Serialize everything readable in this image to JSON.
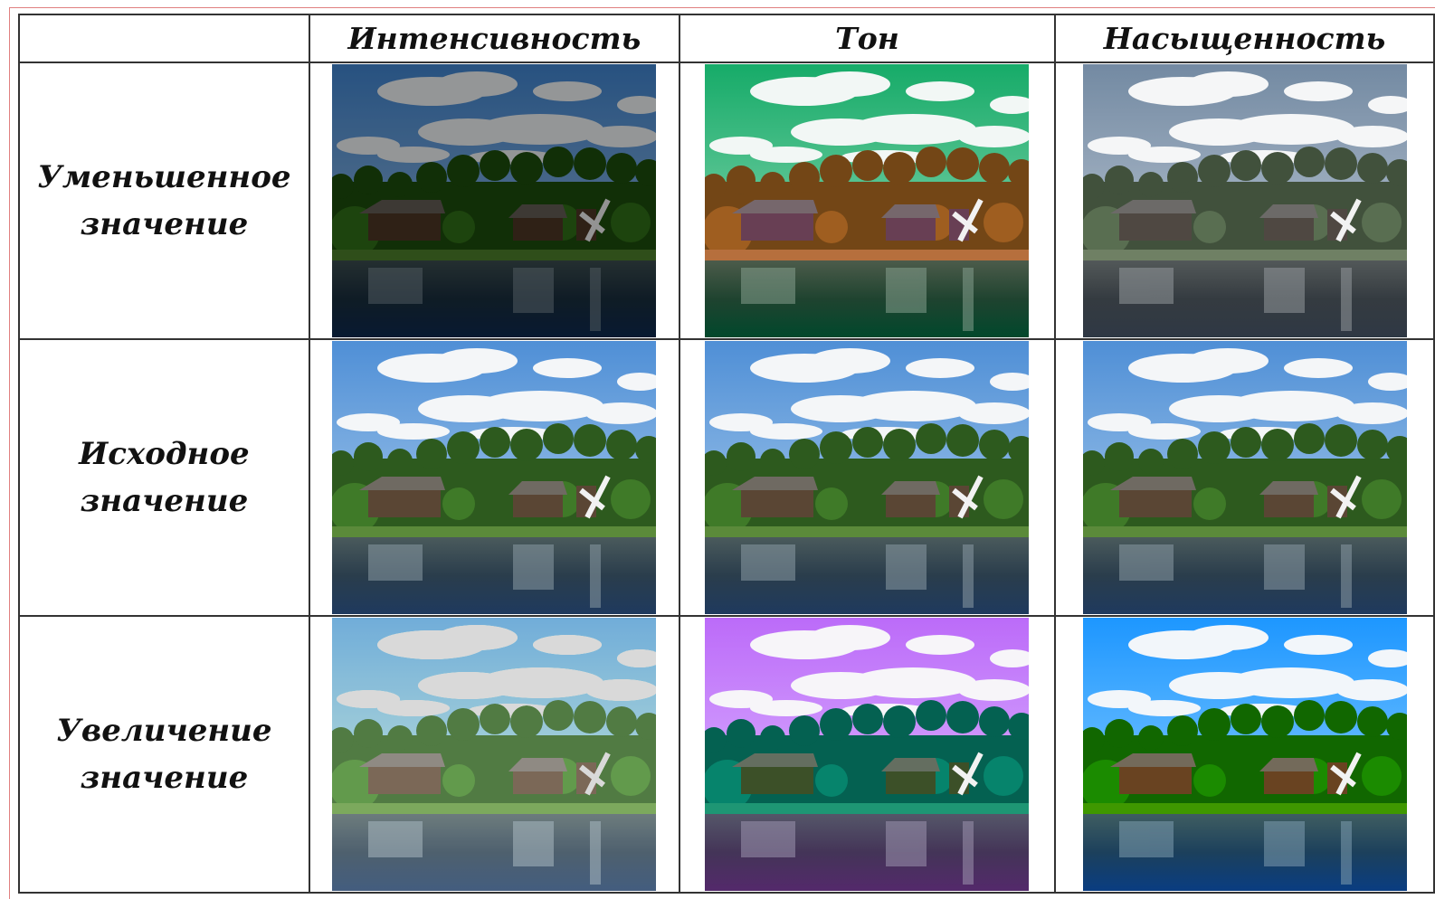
{
  "table": {
    "columns": [
      "Интенсивность",
      "Тон",
      "Насыщенность"
    ],
    "rows": [
      "Уменьшенное значение",
      "Исходное значение",
      "Увеличение значение"
    ]
  }
}
